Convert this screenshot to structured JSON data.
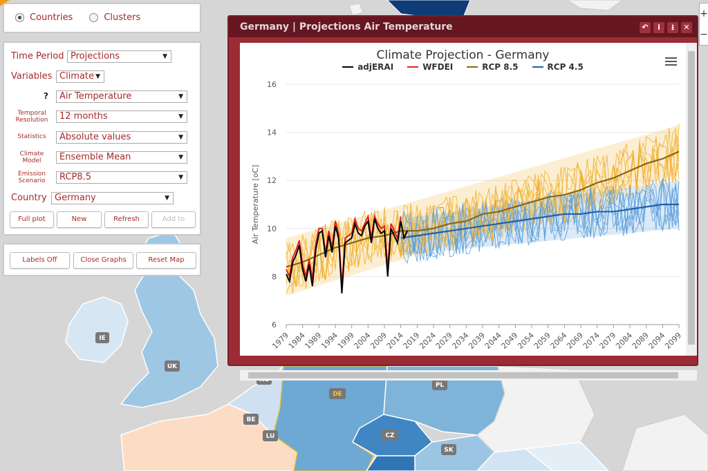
{
  "region_toggle": {
    "countries": "Countries",
    "clusters": "Clusters"
  },
  "form": {
    "time_period": {
      "label": "Time Period",
      "value": "Projections"
    },
    "variables": {
      "label": "Variables",
      "value": "Climate"
    },
    "variable": {
      "help": "?",
      "value": "Air Temperature"
    },
    "temporal_resolution": {
      "label": "Temporal Resolution",
      "value": "12 months"
    },
    "statistics": {
      "label": "Statistics",
      "value": "Absolute values"
    },
    "climate_model": {
      "label": "Climate Model",
      "value": "Ensemble Mean"
    },
    "emission_scenario": {
      "label": "Emission Scenario",
      "value": "RCP8.5"
    },
    "country": {
      "label": "Country",
      "value": "Germany"
    }
  },
  "buttons": {
    "full_plot": "Full plot",
    "new": "New",
    "refresh": "Refresh",
    "add_to": "Add to",
    "labels_off": "Labels Off",
    "close_graphs": "Close Graphs",
    "reset_map": "Reset Map"
  },
  "map": {
    "labels": [
      "IE",
      "UK",
      "NL",
      "BE",
      "LU",
      "DE",
      "PL",
      "CZ",
      "SK"
    ]
  },
  "zoom": {
    "in": "+",
    "out": "−"
  },
  "window": {
    "title": "Germany | Projections Air Temperature"
  },
  "chart_data": {
    "type": "line",
    "title": "Climate Projection - Germany",
    "ylabel": "Air Temperature [oC]",
    "xlabel": "",
    "ylim": [
      6,
      16
    ],
    "yticks": [
      "6",
      "8",
      "10",
      "12",
      "14",
      "16"
    ],
    "xticks": [
      "1979",
      "1984",
      "1989",
      "1994",
      "1999",
      "2004",
      "2009",
      "2014",
      "2019",
      "2024",
      "2029",
      "2034",
      "2039",
      "2044",
      "2049",
      "2054",
      "2059",
      "2064",
      "2069",
      "2074",
      "2079",
      "2084",
      "2089",
      "2094",
      "2099"
    ],
    "legend": [
      {
        "name": "adjERAI",
        "color": "#000000"
      },
      {
        "name": "WFDEI",
        "color": "#e02020"
      },
      {
        "name": "RCP 8.5",
        "color": "#8a6514"
      },
      {
        "name": "RCP 4.5",
        "color": "#1f5fa8"
      }
    ],
    "series": [
      {
        "name": "adjERAI",
        "color": "#000000",
        "x": [
          1979,
          1980,
          1981,
          1982,
          1983,
          1984,
          1985,
          1986,
          1987,
          1988,
          1989,
          1990,
          1991,
          1992,
          1993,
          1994,
          1995,
          1996,
          1997,
          1998,
          1999,
          2000,
          2001,
          2002,
          2003,
          2004,
          2005,
          2006,
          2007,
          2008,
          2009,
          2010,
          2011,
          2012,
          2013,
          2014,
          2015,
          2016
        ],
        "values": [
          8.1,
          7.8,
          8.6,
          8.9,
          9.3,
          8.3,
          7.8,
          8.5,
          7.6,
          9.1,
          9.8,
          9.9,
          8.8,
          9.7,
          9.0,
          10.1,
          9.6,
          7.3,
          9.4,
          9.5,
          9.6,
          10.2,
          9.8,
          9.7,
          10.1,
          10.3,
          9.4,
          10.4,
          10.0,
          9.8,
          9.9,
          8.0,
          10.0,
          9.7,
          9.4,
          10.3,
          9.6,
          9.9
        ]
      },
      {
        "name": "WFDEI",
        "color": "#e02020",
        "x": [
          1979,
          1980,
          1981,
          1982,
          1983,
          1984,
          1985,
          1986,
          1987,
          1988,
          1989,
          1990,
          1991,
          1992,
          1993,
          1994,
          1995,
          1996,
          1997,
          1998,
          1999,
          2000,
          2001,
          2002,
          2003,
          2004,
          2005,
          2006,
          2007,
          2008,
          2009,
          2010,
          2011,
          2012,
          2013,
          2014
        ],
        "values": [
          8.3,
          8.0,
          8.8,
          9.1,
          9.5,
          8.5,
          8.0,
          8.7,
          7.9,
          9.3,
          10.0,
          10.0,
          9.0,
          9.9,
          9.2,
          10.3,
          9.8,
          7.6,
          9.6,
          9.7,
          9.8,
          10.4,
          10.0,
          9.9,
          10.2,
          10.5,
          9.6,
          10.5,
          10.2,
          10.0,
          10.1,
          8.3,
          10.2,
          9.9,
          9.6,
          10.5
        ]
      },
      {
        "name": "RCP 8.5",
        "color": "#8a6514",
        "x": [
          1979,
          1984,
          1989,
          1994,
          1999,
          2004,
          2009,
          2014,
          2019,
          2024,
          2029,
          2034,
          2039,
          2044,
          2049,
          2054,
          2059,
          2064,
          2069,
          2074,
          2079,
          2084,
          2089,
          2094,
          2099
        ],
        "values": [
          8.4,
          8.6,
          8.9,
          9.2,
          9.4,
          9.6,
          9.7,
          9.9,
          9.9,
          10.0,
          10.2,
          10.3,
          10.6,
          10.7,
          10.9,
          11.1,
          11.3,
          11.4,
          11.6,
          11.9,
          12.1,
          12.4,
          12.7,
          12.9,
          13.2
        ]
      },
      {
        "name": "RCP 4.5",
        "color": "#1f5fa8",
        "x": [
          2014,
          2019,
          2024,
          2029,
          2034,
          2039,
          2044,
          2049,
          2054,
          2059,
          2064,
          2069,
          2074,
          2079,
          2084,
          2089,
          2094,
          2099
        ],
        "values": [
          9.6,
          9.7,
          9.8,
          9.9,
          10.0,
          10.1,
          10.2,
          10.3,
          10.4,
          10.5,
          10.6,
          10.6,
          10.7,
          10.7,
          10.8,
          10.9,
          11.0,
          11.0
        ]
      }
    ],
    "bands": [
      {
        "name": "RCP 8.5 range",
        "x": [
          1979,
          2099
        ],
        "lower": [
          7.2,
          12.3
        ],
        "upper": [
          9.6,
          14.3
        ]
      },
      {
        "name": "RCP 4.5 range",
        "x": [
          2014,
          2099
        ],
        "lower": [
          8.9,
          10.0
        ],
        "upper": [
          10.4,
          12.0
        ]
      }
    ],
    "grid": true
  },
  "colors": {
    "window": "#9b2c35",
    "window_header": "#651621",
    "accent_text": "#a52a2a",
    "rcp85_members": "#f0b030",
    "rcp45_members": "#5b9fdb"
  }
}
